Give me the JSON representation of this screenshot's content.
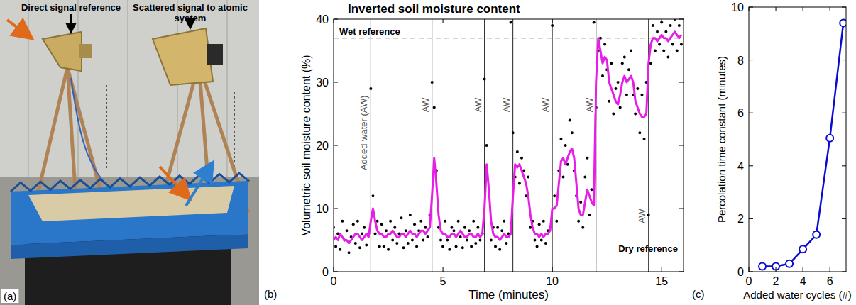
{
  "photo": {
    "panel_label": "(a)",
    "labels": [
      "Direct signal reference",
      "Scattered signal to atomic system"
    ]
  },
  "chart_data": [
    {
      "type": "scatter",
      "panel_label": "(b)",
      "title": "Inverted soil moisture content",
      "x_label": "Time (minutes)",
      "y_label": "Volumetric soil moisture content (%)",
      "xlim": [
        0,
        16
      ],
      "ylim": [
        0,
        40
      ],
      "xticks": [
        0,
        5,
        10,
        15
      ],
      "yticks": [
        0,
        10,
        20,
        30,
        40
      ],
      "grid": false,
      "x": [
        0,
        0.1,
        0.2,
        0.3,
        0.4,
        0.5,
        0.6,
        0.7,
        0.8,
        0.9,
        1,
        1.1,
        1.2,
        1.3,
        1.4,
        1.5,
        1.6,
        1.7,
        1.8,
        1.9,
        2,
        2.1,
        2.2,
        2.3,
        2.4,
        2.5,
        2.6,
        2.7,
        2.8,
        2.9,
        3,
        3.1,
        3.2,
        3.3,
        3.4,
        3.5,
        3.6,
        3.7,
        3.8,
        3.9,
        4,
        4.1,
        4.2,
        4.3,
        4.4,
        4.5,
        4.6,
        4.7,
        4.8,
        4.9,
        5,
        5.1,
        5.2,
        5.3,
        5.4,
        5.5,
        5.6,
        5.7,
        5.8,
        5.9,
        6,
        6.1,
        6.2,
        6.3,
        6.4,
        6.5,
        6.6,
        6.7,
        6.8,
        6.9,
        7,
        7.1,
        7.2,
        7.3,
        7.4,
        7.5,
        7.6,
        7.7,
        7.8,
        7.9,
        8,
        8.1,
        8.2,
        8.3,
        8.4,
        8.5,
        8.6,
        8.7,
        8.8,
        8.9,
        9,
        9.1,
        9.2,
        9.3,
        9.4,
        9.5,
        9.6,
        9.7,
        9.8,
        9.9,
        10,
        10.1,
        10.2,
        10.3,
        10.4,
        10.5,
        10.6,
        10.7,
        10.8,
        10.9,
        11,
        11.1,
        11.2,
        11.3,
        11.4,
        11.5,
        11.6,
        11.7,
        11.8,
        11.9,
        12,
        12.1,
        12.2,
        12.3,
        12.4,
        12.5,
        12.6,
        12.7,
        12.8,
        12.9,
        13,
        13.1,
        13.2,
        13.3,
        13.4,
        13.5,
        13.6,
        13.7,
        13.8,
        13.9,
        14,
        14.1,
        14.2,
        14.3,
        14.4,
        14.5,
        14.6,
        14.7,
        14.8,
        14.9,
        15,
        15.1,
        15.2,
        15.3,
        15.4,
        15.5,
        15.6,
        15.7,
        15.8,
        15.9
      ],
      "series": [
        {
          "type": "scatter",
          "marker": "circle",
          "color": "#000000",
          "values": [
            7,
            4,
            6,
            3.5,
            8,
            5,
            6.5,
            3,
            5.5,
            7.5,
            4.5,
            8,
            3.8,
            6,
            7,
            4.2,
            6,
            29,
            12,
            6,
            8,
            4,
            7.5,
            4,
            6.5,
            3.5,
            8,
            5,
            7,
            4.5,
            6,
            8.5,
            3.8,
            6.5,
            4.5,
            9,
            5,
            7.5,
            4,
            6.5,
            8,
            5,
            7,
            5.5,
            9,
            30,
            26,
            16,
            7,
            5,
            4,
            8,
            5,
            3.5,
            7,
            6.5,
            4,
            8,
            5.5,
            3.8,
            7,
            5,
            6.5,
            4,
            8,
            4.5,
            7,
            5,
            6,
            30.5,
            20,
            12,
            5,
            7,
            4,
            7,
            3.5,
            6.5,
            8,
            4.5,
            6,
            39.5,
            22,
            15,
            19,
            14,
            18,
            16,
            12,
            15,
            7,
            8,
            5,
            4,
            7.5,
            5,
            8,
            4.5,
            6.5,
            7,
            39,
            12,
            8,
            16,
            21,
            15,
            20,
            17,
            24,
            22,
            16,
            12,
            8,
            11,
            7,
            15,
            18,
            9,
            13,
            39.5,
            26,
            35,
            37,
            31,
            36,
            32,
            27,
            33,
            25,
            29,
            30,
            26,
            33,
            34,
            28,
            32,
            35,
            28,
            25,
            29,
            22,
            28,
            21,
            30,
            9,
            33,
            39,
            35,
            38,
            36,
            39.5,
            35,
            38,
            34,
            39,
            36,
            40,
            35,
            39,
            36
          ]
        },
        {
          "type": "line",
          "line_style": "solid",
          "color": "#e61ee6",
          "values": [
            5,
            5.5,
            5,
            6,
            5.5,
            5,
            5,
            4.5,
            5,
            5.5,
            6,
            6,
            5.5,
            5,
            5.5,
            6,
            5.5,
            8,
            10,
            8,
            6.5,
            6,
            6,
            5.5,
            5.5,
            6,
            6,
            6.5,
            6,
            5.5,
            5.5,
            6,
            6,
            5.5,
            6,
            6.5,
            6,
            6,
            5.5,
            6,
            6.5,
            6.5,
            6,
            6.5,
            7,
            12,
            18,
            14,
            9,
            6.5,
            6,
            6,
            5.5,
            5.5,
            6,
            6,
            5.5,
            6,
            6.5,
            6,
            5.5,
            5.5,
            6,
            6,
            5.5,
            5.5,
            6,
            5.5,
            6,
            10,
            17,
            13,
            8,
            6,
            5.5,
            5.5,
            5,
            5.5,
            6,
            5.5,
            5.5,
            6,
            12,
            17,
            16.5,
            17,
            16,
            15,
            14,
            12,
            9,
            7,
            6,
            6,
            5.5,
            6,
            5.5,
            6,
            6,
            6.5,
            10,
            10,
            10.5,
            14,
            17.5,
            18,
            17,
            18,
            19,
            19.5,
            18,
            14,
            10,
            9,
            9,
            11,
            13,
            12,
            11,
            10.5,
            30,
            37,
            35,
            33,
            34,
            33.5,
            30,
            29,
            28,
            27,
            26.5,
            28,
            30,
            31,
            30,
            30.5,
            31,
            30,
            27,
            26,
            25,
            24.5,
            24.5,
            25,
            33,
            36,
            37,
            37,
            36.5,
            37,
            37.5,
            37,
            37,
            36.5,
            37,
            37.5,
            38,
            37.5,
            37,
            37.5
          ]
        }
      ],
      "vertical_lines": [
        {
          "x": 1.7,
          "label": "Added water (AW)"
        },
        {
          "x": 4.5,
          "label": "AW"
        },
        {
          "x": 6.9,
          "label": "AW"
        },
        {
          "x": 8.2,
          "label": "AW"
        },
        {
          "x": 10.0,
          "label": "AW"
        },
        {
          "x": 12.0,
          "label": "AW"
        },
        {
          "x": 14.4,
          "label": "AW"
        }
      ],
      "reference_lines": [
        {
          "y": 37,
          "label": "Wet reference"
        },
        {
          "y": 5,
          "label": "Dry reference"
        }
      ]
    },
    {
      "type": "line",
      "panel_label": "(c)",
      "x_label": "Added water cycles (#)",
      "y_label": "Percolation time constant (minutes)",
      "xlim": [
        0,
        7.2
      ],
      "ylim": [
        0,
        10
      ],
      "xticks": [
        0,
        2,
        4,
        6
      ],
      "yticks": [
        0,
        2,
        4,
        6,
        8,
        10
      ],
      "grid": false,
      "x": [
        1,
        2,
        3,
        4,
        5,
        6,
        7
      ],
      "series": [
        {
          "type": "line",
          "marker": "circle",
          "line_style": "solid",
          "color": "#0a0ad2",
          "values": [
            0.2,
            0.2,
            0.3,
            0.85,
            1.4,
            5.05,
            9.4
          ]
        }
      ]
    }
  ]
}
